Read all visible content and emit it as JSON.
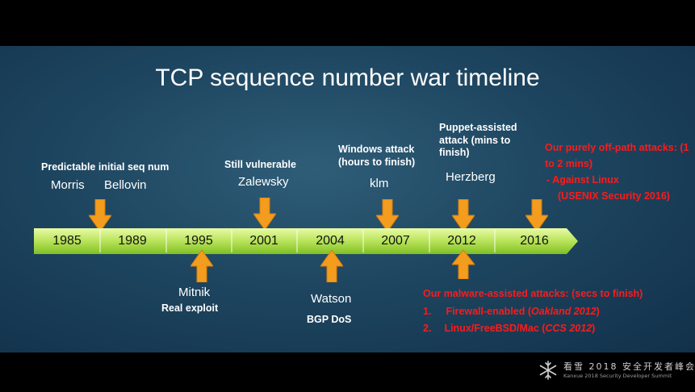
{
  "title": "TCP sequence number war timeline",
  "years": [
    "1985",
    "1989",
    "1995",
    "2001",
    "2004",
    "2007",
    "2012",
    "2016"
  ],
  "above": {
    "predictable": "Predictable initial seq num",
    "morris": "Morris",
    "bellovin": "Bellovin",
    "still_vulnerable": "Still vulnerable",
    "zalewsky": "Zalewsky",
    "windows_attack": [
      "Windows attack",
      "(hours to finish)"
    ],
    "klm": "klm",
    "puppet": [
      "Puppet-assisted",
      "attack (mins to",
      "finish)"
    ],
    "herzberg": "Herzberg",
    "offpath": [
      "Our purely off-path attacks: (1",
      "to 2 mins)",
      "-   Against Linux",
      "    (USENIX Security 2016)"
    ]
  },
  "below": {
    "mitnik": "Mitnik",
    "real_exploit": "Real exploit",
    "watson": "Watson",
    "bgp_dos": "BGP DoS",
    "malware_title": "Our malware-assisted  attacks: (secs to finish)",
    "item1_num": "1.",
    "item1_text": "Firewall-enabled (",
    "item1_venue": "Oakland 2012",
    "item1_end": ")",
    "item2_num": "2.",
    "item2_text": "Linux/FreeBSD/Mac (",
    "item2_venue": "CCS 2012",
    "item2_end": ")"
  },
  "footer": {
    "cn": "看雪 2018 安全开发者峰会",
    "en": "Kanxue 2018 Security Developer Summit"
  },
  "colors": {
    "arrow": "#f39c1e",
    "bar_light": "#d9f58a",
    "bar_dark": "#8fcc2e",
    "red_text": "#ff1a1a"
  },
  "icons": [
    "down-arrow-icon",
    "up-arrow-icon",
    "snowflake-icon"
  ]
}
